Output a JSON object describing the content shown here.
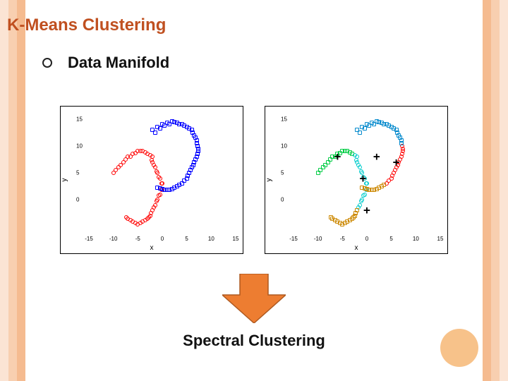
{
  "side_bar_colors": [
    "#fbe4d4",
    "#f8cfb0",
    "#f5bb90"
  ],
  "title": "K-Means Clustering",
  "bullet": {
    "label": "Data Manifold"
  },
  "arrow": {
    "fill": "#ed7d31",
    "stroke": "#ae5a21",
    "width": 90,
    "height": 70
  },
  "bottom_label": "Spectral Clustering",
  "corner_circle_color": "#f7c28a",
  "chart_common": {
    "xlim": [
      -15,
      15
    ],
    "ylim": [
      -6,
      16
    ],
    "xlabel": "x",
    "ylabel": "y",
    "xticks": [
      -15,
      -10,
      -5,
      0,
      5,
      10,
      15
    ],
    "yticks": [
      0,
      5,
      10,
      15
    ],
    "border_color": "#000000",
    "bg_color": "#ffffff",
    "tick_fontsize": 8,
    "label_fontsize": 10
  },
  "chart_left": {
    "type": "scatter",
    "clusters": [
      {
        "color": "#ff0000",
        "shape": "circle",
        "points": [
          [
            -10,
            5
          ],
          [
            -9,
            6
          ],
          [
            -8,
            7
          ],
          [
            -7,
            8
          ],
          [
            -6,
            8.5
          ],
          [
            -5,
            9
          ],
          [
            -4,
            9
          ],
          [
            -3,
            8.5
          ],
          [
            -2,
            8
          ],
          [
            -2,
            7
          ],
          [
            -1.5,
            6
          ],
          [
            -1,
            5
          ],
          [
            -0.5,
            4
          ],
          [
            0,
            3
          ],
          [
            0,
            2
          ],
          [
            -0.5,
            1
          ],
          [
            -1,
            0
          ],
          [
            -1.5,
            -1
          ],
          [
            -2,
            -2
          ],
          [
            -2.5,
            -3
          ],
          [
            -3,
            -3.5
          ],
          [
            -4,
            -4
          ],
          [
            -5,
            -4.5
          ],
          [
            -6,
            -4
          ],
          [
            -7,
            -3.5
          ],
          [
            -9.5,
            5.5
          ],
          [
            -8.5,
            6.5
          ],
          [
            -7.5,
            7.5
          ],
          [
            -6.5,
            8
          ],
          [
            -5.5,
            8.7
          ],
          [
            -4.5,
            9.1
          ],
          [
            -3.5,
            8.8
          ],
          [
            -2.5,
            8.3
          ],
          [
            -2.2,
            7.4
          ],
          [
            -1.8,
            6.4
          ],
          [
            -1.2,
            5.3
          ],
          [
            -0.7,
            4.2
          ],
          [
            -0.2,
            3.1
          ],
          [
            -0.2,
            1.9
          ],
          [
            -0.7,
            0.8
          ],
          [
            -1.2,
            -0.3
          ],
          [
            -1.8,
            -1.4
          ],
          [
            -2.3,
            -2.4
          ],
          [
            -2.8,
            -3.2
          ],
          [
            -3.5,
            -3.8
          ],
          [
            -4.5,
            -4.3
          ],
          [
            -5.5,
            -4.3
          ],
          [
            -6.5,
            -3.8
          ],
          [
            -7.3,
            -3.2
          ]
        ]
      },
      {
        "color": "#0000ff",
        "shape": "square",
        "points": [
          [
            -2,
            13
          ],
          [
            -1,
            13.5
          ],
          [
            0,
            14
          ],
          [
            1,
            14.3
          ],
          [
            2,
            14.5
          ],
          [
            3,
            14.3
          ],
          [
            4,
            14
          ],
          [
            5,
            13.5
          ],
          [
            6,
            13
          ],
          [
            6.5,
            12
          ],
          [
            7,
            11
          ],
          [
            7.2,
            10
          ],
          [
            7.3,
            9
          ],
          [
            7,
            8
          ],
          [
            6.5,
            7
          ],
          [
            6,
            6
          ],
          [
            5.5,
            5
          ],
          [
            5,
            4
          ],
          [
            4,
            3
          ],
          [
            3,
            2.5
          ],
          [
            2,
            2
          ],
          [
            1,
            1.8
          ],
          [
            0,
            2
          ],
          [
            -1,
            2.3
          ],
          [
            -1.5,
            12.5
          ],
          [
            -0.5,
            13.2
          ],
          [
            0.5,
            13.8
          ],
          [
            1.5,
            14.1
          ],
          [
            2.5,
            14.4
          ],
          [
            3.5,
            14.1
          ],
          [
            4.5,
            13.8
          ],
          [
            5.5,
            13.2
          ],
          [
            6.2,
            12.5
          ],
          [
            6.8,
            11.5
          ],
          [
            7.1,
            10.5
          ],
          [
            7.3,
            9.5
          ],
          [
            7.2,
            8.5
          ],
          [
            6.8,
            7.5
          ],
          [
            6.3,
            6.5
          ],
          [
            5.8,
            5.5
          ],
          [
            5.2,
            4.5
          ],
          [
            4.5,
            3.5
          ],
          [
            3.5,
            2.8
          ],
          [
            2.5,
            2.2
          ],
          [
            1.5,
            1.9
          ],
          [
            0.5,
            1.9
          ],
          [
            -0.5,
            2.1
          ]
        ]
      }
    ]
  },
  "chart_right": {
    "type": "scatter",
    "clusters": [
      {
        "color": "#00cc44",
        "shape": "square",
        "points": [
          [
            -10,
            5
          ],
          [
            -9,
            6
          ],
          [
            -9.5,
            5.5
          ],
          [
            -8,
            7
          ],
          [
            -8.5,
            6.5
          ],
          [
            -7,
            8
          ],
          [
            -7.5,
            7.5
          ],
          [
            -6,
            8.5
          ],
          [
            -6.5,
            8
          ],
          [
            -5,
            9
          ],
          [
            -5.5,
            8.7
          ],
          [
            -4,
            9
          ],
          [
            -4.5,
            9.1
          ],
          [
            -3,
            8.5
          ],
          [
            -3.5,
            8.8
          ]
        ]
      },
      {
        "color": "#00cccc",
        "shape": "circle",
        "points": [
          [
            -2,
            8
          ],
          [
            -2.5,
            8.3
          ],
          [
            -2,
            7
          ],
          [
            -2.2,
            7.4
          ],
          [
            -1.5,
            6
          ],
          [
            -1.8,
            6.4
          ],
          [
            -1,
            5
          ],
          [
            -1.2,
            5.3
          ],
          [
            -0.5,
            4
          ],
          [
            -0.7,
            4.2
          ],
          [
            0,
            3
          ],
          [
            -0.2,
            3.1
          ],
          [
            0,
            2
          ],
          [
            -0.2,
            1.9
          ],
          [
            -0.5,
            1
          ],
          [
            -0.7,
            0.8
          ],
          [
            -1,
            0
          ],
          [
            -1.2,
            -0.3
          ],
          [
            -1.5,
            -1
          ],
          [
            -1.8,
            -1.4
          ]
        ]
      },
      {
        "color": "#ff0000",
        "shape": "circle",
        "points": [
          [
            7.2,
            10
          ],
          [
            7.3,
            9.5
          ],
          [
            7.3,
            9
          ],
          [
            7.2,
            8.5
          ],
          [
            7,
            8
          ],
          [
            6.8,
            7.5
          ],
          [
            6.5,
            7
          ],
          [
            6.3,
            6.5
          ],
          [
            6,
            6
          ],
          [
            5.8,
            5.5
          ],
          [
            5.5,
            5
          ],
          [
            5.2,
            4.5
          ],
          [
            5,
            4
          ],
          [
            4.5,
            3.5
          ],
          [
            4,
            3
          ]
        ]
      },
      {
        "color": "#cc8800",
        "shape": "square",
        "points": [
          [
            -2,
            -2
          ],
          [
            -2.3,
            -2.4
          ],
          [
            -2.5,
            -3
          ],
          [
            -2.8,
            -3.2
          ],
          [
            -3,
            -3.5
          ],
          [
            -3.5,
            -3.8
          ],
          [
            -4,
            -4
          ],
          [
            -4.5,
            -4.3
          ],
          [
            -5,
            -4.5
          ],
          [
            -5.5,
            -4.3
          ],
          [
            -6,
            -4
          ],
          [
            -6.5,
            -3.8
          ],
          [
            -7,
            -3.5
          ],
          [
            -7.3,
            -3.2
          ],
          [
            3,
            2.5
          ],
          [
            3.5,
            2.8
          ],
          [
            2,
            2
          ],
          [
            2.5,
            2.2
          ],
          [
            1,
            1.8
          ],
          [
            1.5,
            1.9
          ],
          [
            0,
            2
          ],
          [
            0.5,
            1.9
          ],
          [
            -1,
            2.3
          ],
          [
            -0.5,
            2.1
          ]
        ]
      },
      {
        "color": "#0088cc",
        "shape": "square",
        "points": [
          [
            -2,
            13
          ],
          [
            -1.5,
            12.5
          ],
          [
            -1,
            13.5
          ],
          [
            -0.5,
            13.2
          ],
          [
            0,
            14
          ],
          [
            0.5,
            13.8
          ],
          [
            1,
            14.3
          ],
          [
            1.5,
            14.1
          ],
          [
            2,
            14.5
          ],
          [
            2.5,
            14.4
          ],
          [
            3,
            14.3
          ],
          [
            3.5,
            14.1
          ],
          [
            4,
            14
          ],
          [
            4.5,
            13.8
          ],
          [
            5,
            13.5
          ],
          [
            5.5,
            13.2
          ],
          [
            6,
            13
          ],
          [
            6.2,
            12.5
          ],
          [
            6.5,
            12
          ],
          [
            6.8,
            11.5
          ],
          [
            7,
            11
          ],
          [
            7.1,
            10.5
          ]
        ]
      }
    ],
    "centroids": [
      [
        -6,
        8
      ],
      [
        -0.8,
        4
      ],
      [
        2,
        8
      ],
      [
        6,
        7
      ],
      [
        0,
        -2
      ]
    ]
  }
}
